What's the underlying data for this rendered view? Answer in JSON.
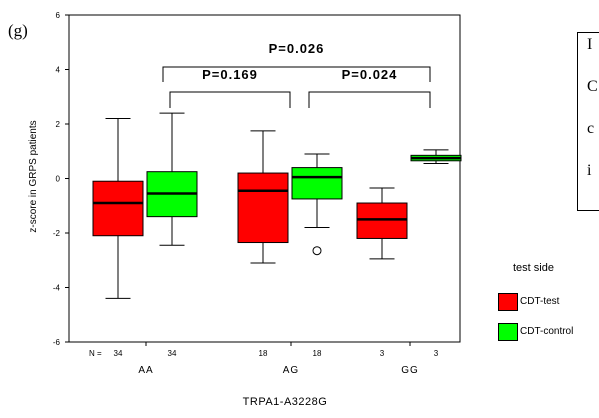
{
  "panel_label": "(g)",
  "side_box_lines": [
    "I",
    "C",
    "c",
    "i"
  ],
  "chart_data": {
    "type": "boxplot",
    "xlabel": "TRPA1-A3228G",
    "ylabel": "z-score in GRPS patients",
    "ylim": [
      -6,
      6
    ],
    "yticks": [
      6,
      4,
      2,
      0,
      -2,
      -4,
      -6
    ],
    "categories": [
      "AA",
      "AG",
      "GG"
    ],
    "n_prefix": "N =",
    "legend": {
      "title": "test side",
      "position": "right",
      "entries": [
        {
          "label": "CDT-test",
          "color": "#ff0000"
        },
        {
          "label": "CDT-control",
          "color": "#00ff00"
        }
      ]
    },
    "series": [
      {
        "name": "CDT-test",
        "color": "#ff0000",
        "boxes": [
          {
            "category": "AA",
            "n": "34",
            "min": -4.4,
            "q1": -2.1,
            "median": -0.9,
            "q3": -0.1,
            "max": 2.2
          },
          {
            "category": "AG",
            "n": "18",
            "min": -3.1,
            "q1": -2.35,
            "median": -0.45,
            "q3": 0.2,
            "max": 1.75
          },
          {
            "category": "GG",
            "n": "3",
            "min": -2.95,
            "q1": -2.2,
            "median": -1.5,
            "q3": -0.9,
            "max": -0.35
          }
        ]
      },
      {
        "name": "CDT-control",
        "color": "#00ff00",
        "boxes": [
          {
            "category": "AA",
            "n": "34",
            "min": -2.45,
            "q1": -1.4,
            "median": -0.55,
            "q3": 0.25,
            "max": 2.4
          },
          {
            "category": "AG",
            "n": "18",
            "min": -1.8,
            "q1": -0.75,
            "median": 0.05,
            "q3": 0.4,
            "max": 0.9,
            "outliers": [
              -2.65
            ]
          },
          {
            "category": "GG",
            "n": "3",
            "min": 0.55,
            "q1": 0.65,
            "median": 0.75,
            "q3": 0.85,
            "max": 1.05
          }
        ]
      }
    ],
    "comparisons": [
      {
        "label": "P=0.026",
        "from": "AA",
        "to": "GG"
      },
      {
        "label": "P=0.169",
        "from": "AA",
        "to": "AG"
      },
      {
        "label": "P=0.024",
        "from": "AG",
        "to": "GG"
      }
    ]
  }
}
